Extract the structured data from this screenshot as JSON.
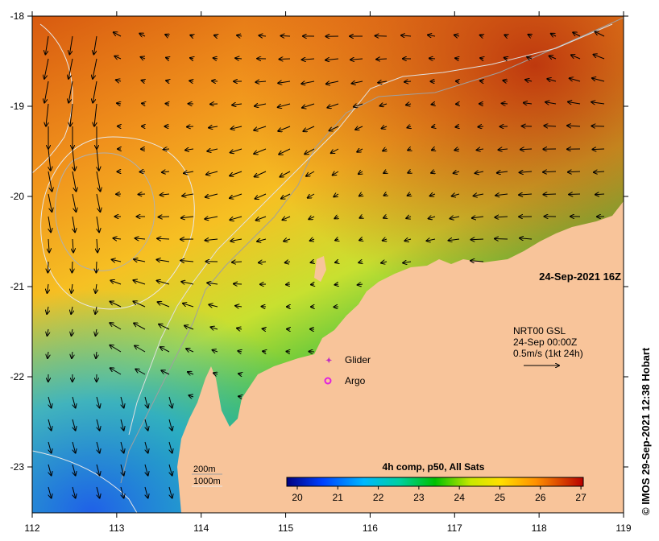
{
  "map": {
    "timestamp": "24-Sep-2021 16Z",
    "credit": "© IMOS 29-Sep-2021 12:38 Hobart",
    "lat_ticks": [
      "-18",
      "-19",
      "-20",
      "-21",
      "-22",
      "-23"
    ],
    "lon_ticks": [
      "112",
      "113",
      "114",
      "115",
      "116",
      "117",
      "118",
      "119"
    ],
    "current_legend": {
      "line1": "NRT00 GSL",
      "line2": "24-Sep 00:00Z",
      "line3": "0.5m/s (1kt 24h)"
    },
    "markers": {
      "glider": "Glider",
      "argo": "Argo"
    },
    "isobaths": {
      "shallow": "200m",
      "deep": "1000m"
    },
    "colorbar": {
      "title": "4h comp, p50, All Sats",
      "ticks": [
        "20",
        "21",
        "22",
        "23",
        "24",
        "25",
        "26",
        "27"
      ]
    },
    "colors": {
      "land": "#f8c49a",
      "warm": "#c83010",
      "cool": "#1a5ee0",
      "glider": "#c030c0",
      "argo": "#e020e0"
    }
  }
}
